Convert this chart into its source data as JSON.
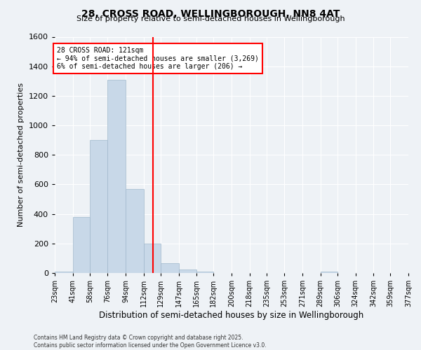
{
  "title": "28, CROSS ROAD, WELLINGBOROUGH, NN8 4AT",
  "subtitle": "Size of property relative to semi-detached houses in Wellingborough",
  "xlabel": "Distribution of semi-detached houses by size in Wellingborough",
  "ylabel": "Number of semi-detached properties",
  "bin_labels": [
    "23sqm",
    "41sqm",
    "58sqm",
    "76sqm",
    "94sqm",
    "112sqm",
    "129sqm",
    "147sqm",
    "165sqm",
    "182sqm",
    "200sqm",
    "218sqm",
    "235sqm",
    "253sqm",
    "271sqm",
    "289sqm",
    "306sqm",
    "324sqm",
    "342sqm",
    "359sqm",
    "377sqm"
  ],
  "bin_edges": [
    23,
    41,
    58,
    76,
    94,
    112,
    129,
    147,
    165,
    182,
    200,
    218,
    235,
    253,
    271,
    289,
    306,
    324,
    342,
    359,
    377
  ],
  "bar_heights": [
    10,
    380,
    900,
    1310,
    570,
    200,
    65,
    25,
    10,
    0,
    0,
    0,
    0,
    0,
    0,
    10,
    0,
    0,
    0,
    0
  ],
  "bar_color": "#c8d8e8",
  "bar_edgecolor": "#a0b8cc",
  "vline_x": 121,
  "vline_color": "red",
  "annotation_title": "28 CROSS ROAD: 121sqm",
  "annotation_line1": "← 94% of semi-detached houses are smaller (3,269)",
  "annotation_line2": "6% of semi-detached houses are larger (206) →",
  "ylim": [
    0,
    1600
  ],
  "yticks": [
    0,
    200,
    400,
    600,
    800,
    1000,
    1200,
    1400,
    1600
  ],
  "bg_color": "#eef2f6",
  "footer1": "Contains HM Land Registry data © Crown copyright and database right 2025.",
  "footer2": "Contains public sector information licensed under the Open Government Licence v3.0."
}
